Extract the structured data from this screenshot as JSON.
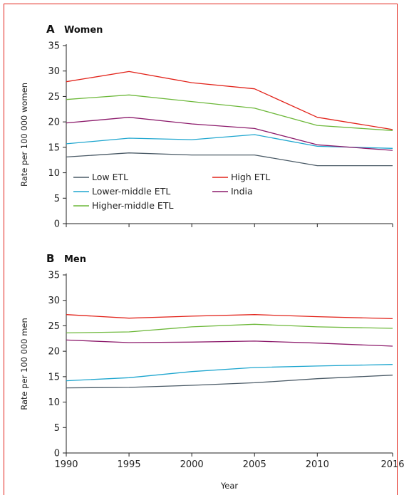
{
  "chart_data": [
    {
      "type": "line",
      "panel_letter": "A",
      "title": "Women",
      "xlabel": "",
      "ylabel": "Rate per 100 000 women",
      "ylim": [
        0,
        35
      ],
      "yticks": [
        "0",
        "5",
        "10",
        "15",
        "20",
        "25",
        "30",
        "35"
      ],
      "x": [
        1990,
        1995,
        2000,
        2005,
        2010,
        2016
      ],
      "xticks_shown": false,
      "legend_position": "bottom-left",
      "legend_order": [
        0,
        4,
        1,
        3,
        2
      ],
      "series": [
        {
          "name": "Low ETL",
          "color": "#4a5a66",
          "values": [
            13.1,
            13.9,
            13.5,
            13.5,
            11.4,
            11.4
          ]
        },
        {
          "name": "Lower-middle ETL",
          "color": "#1ea6cf",
          "values": [
            15.7,
            16.8,
            16.5,
            17.5,
            15.2,
            14.8
          ]
        },
        {
          "name": "Higher-middle ETL",
          "color": "#6db83a",
          "values": [
            24.4,
            25.3,
            24.0,
            22.7,
            19.3,
            18.3
          ]
        },
        {
          "name": "India",
          "color": "#8c1a6b",
          "values": [
            19.8,
            20.9,
            19.6,
            18.7,
            15.5,
            14.4
          ]
        },
        {
          "name": "High ETL",
          "color": "#e2231a",
          "values": [
            27.9,
            29.9,
            27.7,
            26.5,
            20.9,
            18.5
          ]
        }
      ]
    },
    {
      "type": "line",
      "panel_letter": "B",
      "title": "Men",
      "xlabel": "Year",
      "ylabel": "Rate per 100 000 men",
      "ylim": [
        0,
        35
      ],
      "yticks": [
        "0",
        "5",
        "10",
        "15",
        "20",
        "25",
        "30",
        "35"
      ],
      "x": [
        1990,
        1995,
        2000,
        2005,
        2010,
        2016
      ],
      "xticks": [
        "1990",
        "1995",
        "2000",
        "2005",
        "2010",
        "2016"
      ],
      "xticks_shown": true,
      "series": [
        {
          "name": "Low ETL",
          "color": "#4a5a66",
          "values": [
            12.8,
            12.9,
            13.3,
            13.8,
            14.6,
            15.3
          ]
        },
        {
          "name": "Lower-middle ETL",
          "color": "#1ea6cf",
          "values": [
            14.2,
            14.8,
            16.0,
            16.8,
            17.1,
            17.4
          ]
        },
        {
          "name": "Higher-middle ETL",
          "color": "#6db83a",
          "values": [
            23.6,
            23.8,
            24.8,
            25.3,
            24.8,
            24.5
          ]
        },
        {
          "name": "India",
          "color": "#8c1a6b",
          "values": [
            22.2,
            21.7,
            21.8,
            22.0,
            21.6,
            21.0
          ]
        },
        {
          "name": "High ETL",
          "color": "#e2231a",
          "values": [
            27.2,
            26.5,
            26.9,
            27.2,
            26.8,
            26.4
          ]
        }
      ]
    }
  ]
}
